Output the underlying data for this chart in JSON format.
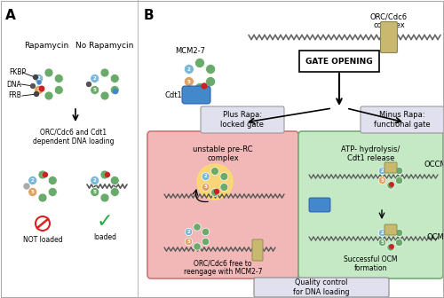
{
  "panel_A_label": "A",
  "panel_B_label": "B",
  "text_rapamycin": "Rapamycin",
  "text_no_rapamycin": "No Rapamycin",
  "text_fkbp": "FKBP",
  "text_dna": "DNA",
  "text_frb": "FRB",
  "text_orc_loading": "ORC/Cdc6 and Cdt1\ndependent DNA loading",
  "text_not_loaded": "NOT loaded",
  "text_loaded": "loaded",
  "text_orc_cdc6": "ORC/Cdc6\ncomplex",
  "text_mcm27": "MCM2-7",
  "text_cdt1": "Cdt1",
  "text_gate_opening": "GATE OPENING",
  "text_plus_rapa": "Plus Rapa:\nlocked gate",
  "text_minus_rapa": "Minus Rapa:\nfunctional gate",
  "text_unstable": "unstable pre-RC\ncomplex",
  "text_orc_free": "ORC/Cdc6 free to\nreengage with MCM2-7",
  "text_atp": "ATP- hydrolysis/\nCdt1 release",
  "text_occm": "OCCM",
  "text_ocm": "OCM",
  "text_successful": "Successful OCM\nformation",
  "text_quality": "Quality control\nfor DNA loading",
  "pink_box_color": "#f2b8b8",
  "green_box_color": "#c5e8c5",
  "gate_box_color": "#e0e0ee",
  "quality_box_color": "#e0e0ee",
  "plus_rapa_box_color": "#e0e0ee",
  "minus_rapa_box_color": "#e0e0ee",
  "mcm_green": "#6aaa6a",
  "mcm_blue": "#7ab8d8",
  "mcm_orange": "#e0a060",
  "orc_tan": "#c8b870",
  "dot_dark": "#444444",
  "dot_red": "#cc2222",
  "cdt1_blue": "#4488cc",
  "dna_gray": "#888888"
}
